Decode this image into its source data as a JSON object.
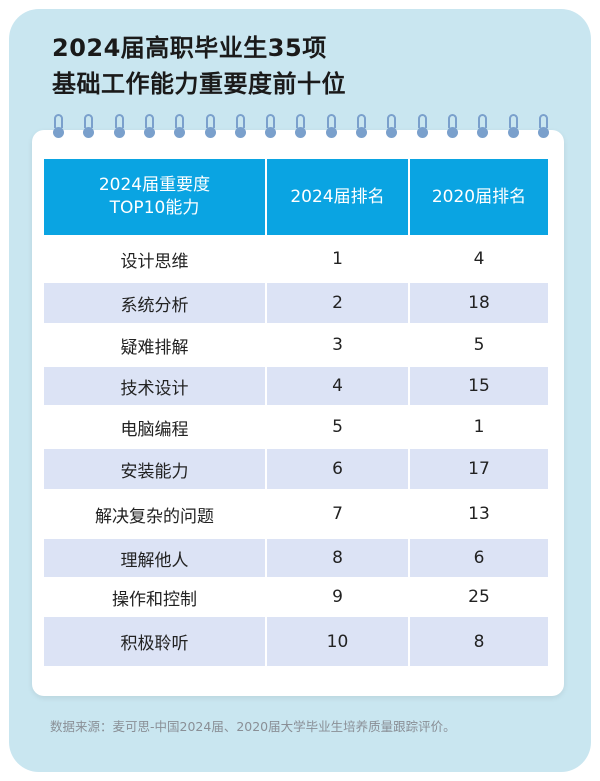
{
  "title": {
    "line1": "2024届高职毕业生35项",
    "line2": "基础工作能力重要度前十位"
  },
  "table": {
    "headers": {
      "ability_line1": "2024届重要度",
      "ability_line2": "TOP10能力",
      "rank2024": "2024届排名",
      "rank2020": "2020届排名"
    },
    "rows": [
      {
        "ability": "设计思维",
        "rank2024": "1",
        "rank2020": "4"
      },
      {
        "ability": "系统分析",
        "rank2024": "2",
        "rank2020": "18"
      },
      {
        "ability": "疑难排解",
        "rank2024": "3",
        "rank2020": "5"
      },
      {
        "ability": "技术设计",
        "rank2024": "4",
        "rank2020": "15"
      },
      {
        "ability": "电脑编程",
        "rank2024": "5",
        "rank2020": "1"
      },
      {
        "ability": "安装能力",
        "rank2024": "6",
        "rank2020": "17"
      },
      {
        "ability": "解决复杂的问题",
        "rank2024": "7",
        "rank2020": "13"
      },
      {
        "ability": "理解他人",
        "rank2024": "8",
        "rank2020": "6"
      },
      {
        "ability": "操作和控制",
        "rank2024": "9",
        "rank2020": "25"
      },
      {
        "ability": "积极聆听",
        "rank2024": "10",
        "rank2020": "8"
      }
    ]
  },
  "source": "数据来源：麦可思-中国2024届、2020届大学毕业生培养质量跟踪评价。",
  "colors": {
    "background": "#c9e6f0",
    "header": "#0aa4e2",
    "stripe": "#dce3f5",
    "ring": "#7aa0cc"
  },
  "decor": {
    "ring_icon_count": 17
  }
}
